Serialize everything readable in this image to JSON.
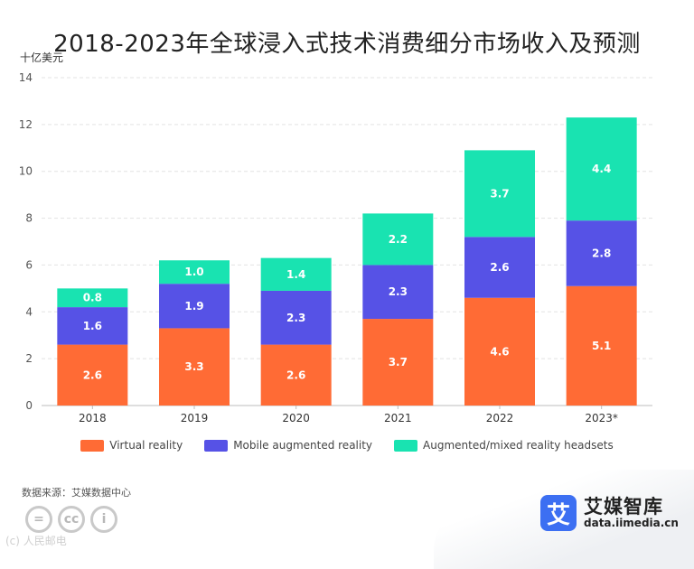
{
  "title": "2018-2023年全球浸入式技术消费细分市场收入及预测",
  "source": "数据来源：艾媒数据中心",
  "brand": {
    "mark": "艾",
    "name": "艾媒智库",
    "url": "data.iimedia.cn"
  },
  "license_note": "(c) 人民邮电",
  "license_badges": [
    "=",
    "cc",
    "i"
  ],
  "colors": {
    "virtual": "#ff6b35",
    "mobile_ar": "#5652e6",
    "headsets": "#19e3b1",
    "brand": "#3c6ff2"
  },
  "chart_data": {
    "type": "bar",
    "stacked": true,
    "title": "2018-2023年全球浸入式技术消费细分市场收入及预测",
    "ylabel": "十亿美元",
    "xlabel": "",
    "ylim": [
      0,
      14
    ],
    "yticks": [
      0,
      2,
      4,
      6,
      8,
      10,
      12,
      14
    ],
    "grid": true,
    "legend_position": "bottom",
    "categories": [
      "2018",
      "2019",
      "2020",
      "2021",
      "2022",
      "2023*"
    ],
    "series": [
      {
        "name": "Virtual reality",
        "color": "#ff6b35",
        "values": [
          2.6,
          3.3,
          2.6,
          3.7,
          4.6,
          5.1
        ]
      },
      {
        "name": "Mobile augmented reality",
        "color": "#5652e6",
        "values": [
          1.6,
          1.9,
          2.3,
          2.3,
          2.6,
          2.8
        ]
      },
      {
        "name": "Augmented/mixed reality headsets",
        "color": "#19e3b1",
        "values": [
          0.8,
          1.0,
          1.4,
          2.2,
          3.7,
          4.4
        ]
      }
    ]
  }
}
